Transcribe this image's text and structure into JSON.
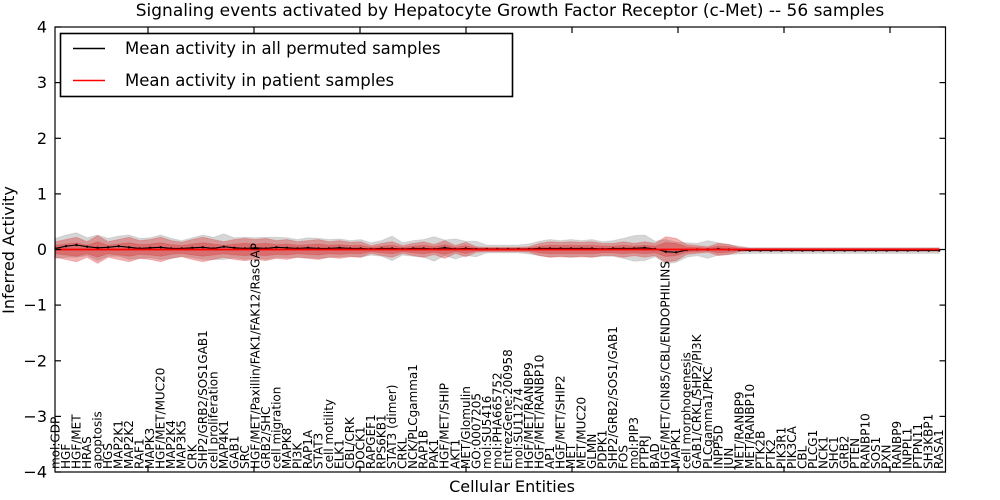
{
  "title": "Signaling events activated by Hepatocyte Growth Factor Receptor (c-Met) -- 56 samples",
  "axes": {
    "ylabel": "Inferred Activity",
    "xlabel": "Cellular Entities",
    "yticks": [
      4,
      3,
      2,
      1,
      0,
      -1,
      -2,
      -3,
      -4
    ],
    "ylim": [
      -4,
      4
    ]
  },
  "legend": {
    "items": [
      {
        "label": "Mean activity in all permuted samples",
        "color": "#000000"
      },
      {
        "label": "Mean activity in patient samples",
        "color": "#ff0000"
      }
    ],
    "position": "upper left"
  },
  "chart_data": {
    "type": "line",
    "title": "Signaling events activated by Hepatocyte Growth Factor Receptor (c-Met) -- 56 samples",
    "xlabel": "Cellular Entities",
    "ylabel": "Inferred Activity",
    "ylim": [
      -4,
      4
    ],
    "grid": false,
    "legend_position": "upper left",
    "categories": [
      "mol:GDP",
      "HGF",
      "HGF/MET",
      "HRAS",
      "apoptosis",
      "HGS",
      "MAP2K1",
      "MAP2K2",
      "RAF1",
      "MAPK3",
      "HGF/MET/MUC20",
      "MAP2K4",
      "MAP3K5",
      "CRK",
      "SHP2/GRB2/SOS1GAB1",
      "cell proliferation",
      "MAP4K1",
      "GAB1",
      "SRC",
      "HGF/MET/Paxillin/FAK1/FAK12/RasGAP",
      "GRB2/SHC",
      "cell migration",
      "MAPK8",
      "PI3K",
      "RAP1A",
      "STAT3",
      "cell motility",
      "ELK1",
      "CBL/CRK",
      "DOCK1",
      "RAPGEF1",
      "RPS6KB1",
      "STAT3 (dimer)",
      "CRKL",
      "NCK/PLCgamma1",
      "RAP1B",
      "PAK1",
      "HGF/MET/SHIP",
      "AKT1",
      "MET/Glomulin",
      "GO:0007205",
      "mol:SU5416",
      "mol:PHA665752",
      "EntrezGene:200958",
      "mol:SU11274",
      "HGF/MET/RANBP9",
      "HGF/MET/RANBP10",
      "AP1",
      "HGF/MET/SHIP2",
      "MET",
      "MET/MUC20",
      "GLMN",
      "PDPK1",
      "SHP2/GRB2/SOS1/GAB1",
      "FOS",
      "mol:PIP3",
      "PTPRJ",
      "BAD",
      "HGF/MET/CIN85/CBL/ENDOPHILINS",
      "MAPK1",
      "cell morphogenesis",
      "GAB1/CRKL/SHP2/PI3K",
      "PLCgamma1/PKC",
      "INPP5D",
      "JUN",
      "MET/RANBP9",
      "MET/RANBP10",
      "PTK2B",
      "PTK2",
      "PIK3R1",
      "PIK3CA",
      "CBL",
      "PLCG1",
      "NCK1",
      "SHC1",
      "GRB2",
      "PTEN",
      "RANBP10",
      "SOS1",
      "PXN",
      "RANBP9",
      "INPPL1",
      "PTPN11",
      "SH3KBP1",
      "RASA1"
    ],
    "series": [
      {
        "name": "Mean activity in all permuted samples",
        "color": "#000000",
        "marker": "dot",
        "values": [
          0.02,
          0.06,
          0.08,
          0.05,
          0.03,
          0.04,
          0.06,
          0.04,
          0.02,
          0.03,
          0.04,
          0.02,
          0.02,
          0.03,
          0.04,
          0.02,
          0.05,
          0.03,
          0.02,
          0.03,
          0.02,
          0.04,
          0.03,
          0.02,
          0.03,
          0.02,
          0.02,
          0.03,
          0.02,
          0.02,
          0.01,
          0.02,
          0.02,
          0.01,
          0.02,
          0.02,
          0.01,
          0.03,
          0.01,
          0.02,
          0.01,
          0.01,
          0.01,
          0.01,
          0.01,
          0.01,
          0.02,
          0.02,
          0.02,
          0.02,
          0.02,
          0.02,
          0.01,
          0.02,
          0.02,
          0.02,
          0.03,
          0.01,
          -0.04,
          -0.05,
          -0.01,
          0.0,
          0.0,
          0.01,
          0.0,
          -0.01,
          -0.02,
          -0.02,
          -0.02,
          -0.02,
          -0.02,
          -0.02,
          -0.02,
          -0.02,
          -0.02,
          -0.02,
          -0.02,
          -0.02,
          -0.02,
          -0.02,
          -0.02,
          -0.02,
          -0.02,
          -0.02,
          -0.02
        ]
      },
      {
        "name": "Mean activity in patient samples",
        "color": "#ff0000",
        "marker": "none",
        "constant_value": 0.0
      }
    ],
    "bands": [
      {
        "name": "permuted-activity-range",
        "center_series": 0,
        "color": "#808080",
        "opacity": 0.32,
        "half_widths": [
          0.18,
          0.2,
          0.22,
          0.16,
          0.23,
          0.16,
          0.18,
          0.22,
          0.18,
          0.18,
          0.22,
          0.18,
          0.14,
          0.18,
          0.22,
          0.2,
          0.23,
          0.18,
          0.2,
          0.18,
          0.2,
          0.18,
          0.18,
          0.16,
          0.18,
          0.18,
          0.16,
          0.16,
          0.14,
          0.16,
          0.11,
          0.14,
          0.22,
          0.11,
          0.14,
          0.16,
          0.22,
          0.14,
          0.18,
          0.13,
          0.14,
          0.07,
          0.07,
          0.07,
          0.07,
          0.09,
          0.13,
          0.16,
          0.14,
          0.16,
          0.14,
          0.16,
          0.13,
          0.14,
          0.18,
          0.23,
          0.23,
          0.14,
          0.22,
          0.18,
          0.13,
          0.11,
          0.16,
          0.11,
          0.09,
          0.07,
          0.05,
          0.05,
          0.05,
          0.05,
          0.05,
          0.05,
          0.05,
          0.05,
          0.05,
          0.05,
          0.05,
          0.05,
          0.05,
          0.05,
          0.05,
          0.05,
          0.05,
          0.05,
          0.05
        ]
      },
      {
        "name": "patient-activity-range-outer",
        "center_series": 1,
        "color": "#dd2222",
        "opacity": 0.35,
        "half_widths": [
          0.14,
          0.18,
          0.22,
          0.14,
          0.25,
          0.14,
          0.18,
          0.22,
          0.16,
          0.18,
          0.22,
          0.16,
          0.13,
          0.18,
          0.22,
          0.18,
          0.14,
          0.18,
          0.2,
          0.18,
          0.2,
          0.16,
          0.18,
          0.14,
          0.16,
          0.18,
          0.14,
          0.16,
          0.13,
          0.14,
          0.07,
          0.11,
          0.14,
          0.07,
          0.11,
          0.14,
          0.09,
          0.16,
          0.07,
          0.13,
          0.05,
          0.04,
          0.04,
          0.04,
          0.04,
          0.05,
          0.11,
          0.14,
          0.13,
          0.14,
          0.13,
          0.14,
          0.11,
          0.11,
          0.14,
          0.11,
          0.14,
          0.11,
          0.23,
          0.2,
          0.09,
          0.07,
          0.05,
          0.11,
          0.09,
          0.04,
          0.025,
          0.025,
          0.025,
          0.025,
          0.025,
          0.025,
          0.025,
          0.025,
          0.025,
          0.025,
          0.025,
          0.025,
          0.025,
          0.025,
          0.025,
          0.025,
          0.025,
          0.025,
          0.025
        ]
      },
      {
        "name": "patient-activity-range-inner",
        "center_series": 1,
        "color": "#dd2222",
        "opacity": 0.35,
        "scale_of_band": 1,
        "scale": 0.55
      }
    ]
  }
}
